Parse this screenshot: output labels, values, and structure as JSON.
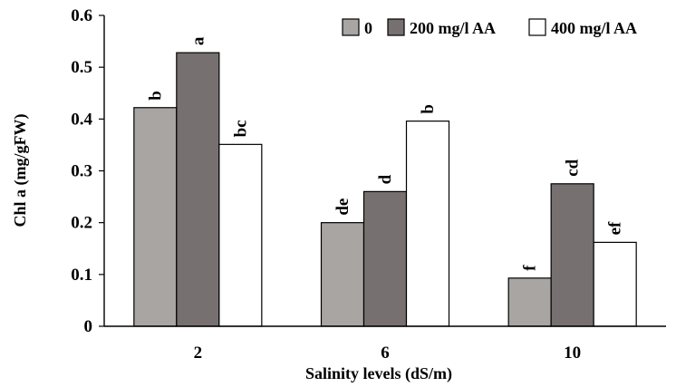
{
  "chart_data": {
    "type": "bar",
    "xlabel": "Salinity levels (dS/m)",
    "ylabel": "Chl a (mg/gFW)",
    "ylim": [
      0,
      0.6
    ],
    "yticks": [
      "0",
      "0.1",
      "0.2",
      "0.3",
      "0.4",
      "0.5",
      "0.6"
    ],
    "categories": [
      "2",
      "6",
      "10"
    ],
    "legend_position": "top-right",
    "grid": false,
    "series": [
      {
        "name": "0",
        "color": "#a8a5a3",
        "values": [
          0.422,
          0.2,
          0.093
        ],
        "letters": [
          "b",
          "de",
          "f"
        ]
      },
      {
        "name": "200 mg/l AA",
        "color": "#767170",
        "values": [
          0.528,
          0.26,
          0.275
        ],
        "letters": [
          "a",
          "d",
          "cd"
        ]
      },
      {
        "name": "400 mg/l AA",
        "color": "#ffffff",
        "values": [
          0.351,
          0.396,
          0.162
        ],
        "letters": [
          "bc",
          "b",
          "ef"
        ]
      }
    ]
  }
}
